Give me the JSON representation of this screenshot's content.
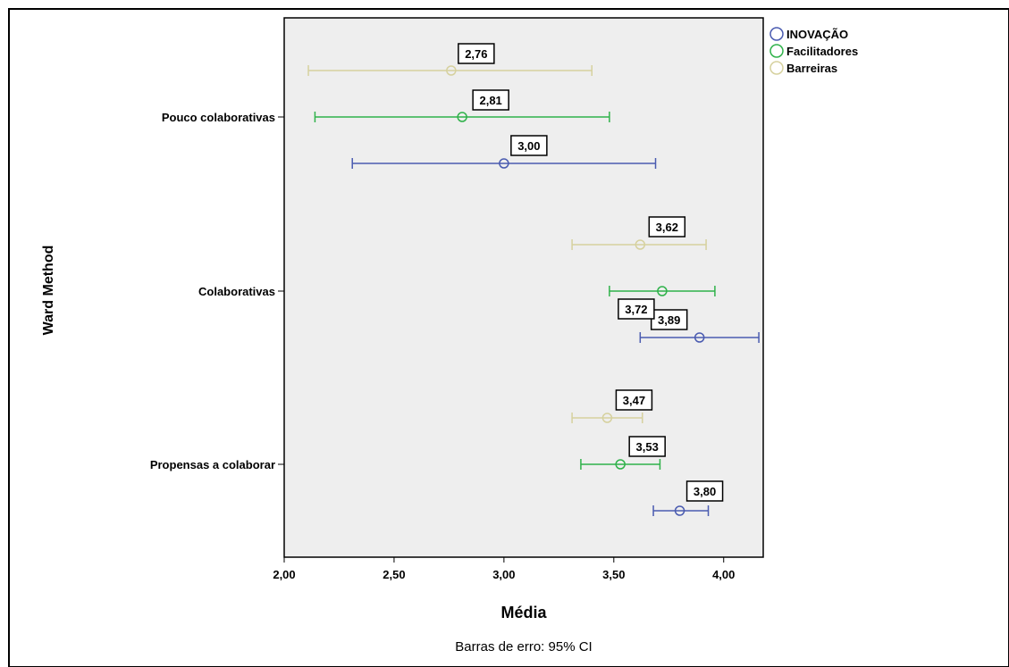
{
  "chart_data": {
    "type": "errorbar",
    "orientation": "horizontal",
    "xlabel": "Média",
    "ylabel": "Ward Method",
    "footnote": "Barras de erro: 95% CI",
    "xlim": [
      2.0,
      4.18
    ],
    "xticks": [
      2.0,
      2.5,
      3.0,
      3.5,
      4.0
    ],
    "xtick_labels": [
      "2,00",
      "2,50",
      "3,00",
      "3,50",
      "4,00"
    ],
    "categories": [
      "Pouco colaborativas",
      "Colaborativas",
      "Propensas a colaborar"
    ],
    "legend_position": "top-right",
    "series": [
      {
        "name": "INOVAÇÃO",
        "color": "#4a5bb0",
        "values": [
          3.0,
          3.89,
          3.8
        ],
        "labels": [
          "3,00",
          "3,89",
          "3,80"
        ],
        "ci_low": [
          2.31,
          3.62,
          3.68
        ],
        "ci_high": [
          3.69,
          4.16,
          3.93
        ]
      },
      {
        "name": "Facilitadores",
        "color": "#2fb24a",
        "values": [
          2.81,
          3.72,
          3.53
        ],
        "labels": [
          "2,81",
          "3,72",
          "3,53"
        ],
        "ci_low": [
          2.14,
          3.48,
          3.35
        ],
        "ci_high": [
          3.48,
          3.96,
          3.71
        ]
      },
      {
        "name": "Barreiras",
        "color": "#d6d19e",
        "values": [
          2.76,
          3.62,
          3.47
        ],
        "labels": [
          "2,76",
          "3,62",
          "3,47"
        ],
        "ci_low": [
          2.11,
          3.31,
          3.31
        ],
        "ci_high": [
          3.4,
          3.92,
          3.63
        ]
      }
    ]
  }
}
